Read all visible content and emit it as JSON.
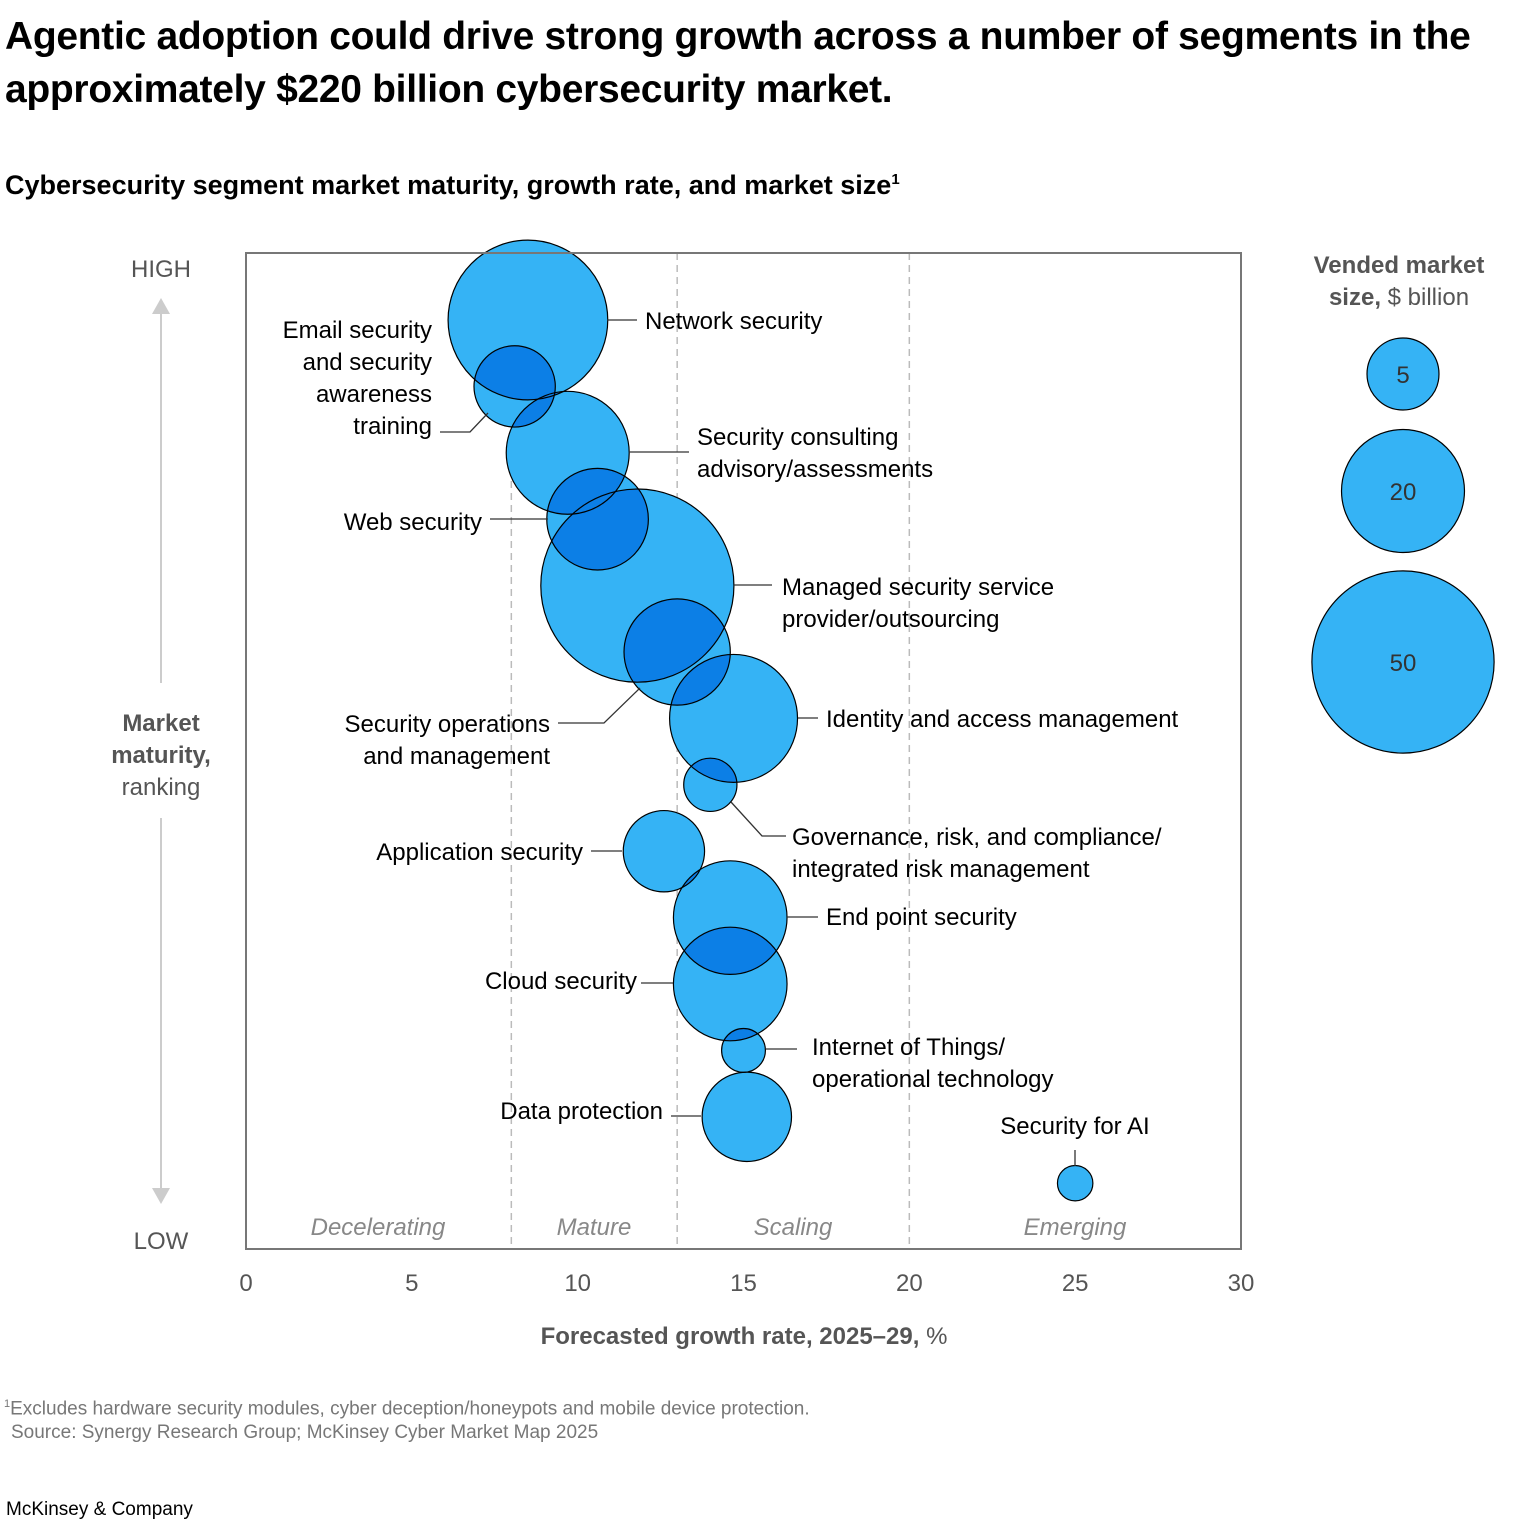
{
  "title": "Agentic adoption could drive strong growth across a number of segments in the approximately $220 billion cybersecurity market.",
  "subtitle": "Cybersecurity segment market maturity, growth rate, and market size",
  "subtitle_footnote_mark": "1",
  "footnote": {
    "mark": "1",
    "text": "Excludes hardware security modules, cyber deception/honeypots and mobile device protection.",
    "source": "Source: Synergy Research Group; McKinsey Cyber Market Map 2025"
  },
  "brand": "McKinsey & Company",
  "colors": {
    "bubble": "#35b3f5",
    "overlap": "#0c7fe6",
    "axis": "#777777",
    "text": "#000000"
  },
  "chart_data": {
    "type": "scatter",
    "subtype": "bubble",
    "xlabel_bold": "Forecasted growth rate, 2025–29,",
    "xlabel_unit": "%",
    "xlim": [
      0,
      30
    ],
    "xticks": [
      "0",
      "5",
      "10",
      "15",
      "20",
      "25",
      "30"
    ],
    "ylabel_bold": [
      "Market",
      "maturity,"
    ],
    "ylabel_unit": "ranking",
    "y_high": "HIGH",
    "y_low": "LOW",
    "grid": false,
    "phase_dividers": [
      8,
      13,
      20
    ],
    "phases": [
      "Decelerating",
      "Mature",
      "Scaling",
      "Emerging"
    ],
    "size_legend": {
      "title_bold": "Vended market",
      "title_bold2": "size,",
      "title_unit": "$ billion",
      "values": [
        5,
        20,
        50
      ],
      "labels": [
        "5",
        "20",
        "50"
      ],
      "placement": "right"
    },
    "points": [
      {
        "label": [
          "Network security"
        ],
        "growth": 8.5,
        "rank": 1,
        "size": 37
      },
      {
        "label": [
          "Email security",
          "and security",
          "awareness",
          "training"
        ],
        "growth": 8.1,
        "rank": 2,
        "size": 7
      },
      {
        "label": [
          "Security consulting",
          "advisory/assessments"
        ],
        "growth": 9.7,
        "rank": 3,
        "size": 20
      },
      {
        "label": [
          "Web security"
        ],
        "growth": 10.6,
        "rank": 4,
        "size": 12.5
      },
      {
        "label": [
          "Managed security service",
          "provider/outsourcing"
        ],
        "growth": 11.8,
        "rank": 5,
        "size": 57
      },
      {
        "label": [
          "Security operations",
          "and management"
        ],
        "growth": 13.0,
        "rank": 6,
        "size": 14
      },
      {
        "label": [
          "Identity and access management"
        ],
        "growth": 14.7,
        "rank": 7,
        "size": 22
      },
      {
        "label": [
          "Governance, risk, and compliance/",
          "integrated risk management"
        ],
        "growth": 14.0,
        "rank": 8,
        "size": 2
      },
      {
        "label": [
          "Application security"
        ],
        "growth": 12.6,
        "rank": 9,
        "size": 7
      },
      {
        "label": [
          "End point security"
        ],
        "growth": 14.6,
        "rank": 10,
        "size": 16.5
      },
      {
        "label": [
          "Cloud security"
        ],
        "growth": 14.6,
        "rank": 11,
        "size": 16.5
      },
      {
        "label": [
          "Internet of Things/",
          "operational technology"
        ],
        "growth": 15.0,
        "rank": 12,
        "size": 1
      },
      {
        "label": [
          "Data protection"
        ],
        "growth": 15.1,
        "rank": 13,
        "size": 9
      },
      {
        "label": [
          "Security for AI"
        ],
        "growth": 25.0,
        "rank": 14,
        "size": 0.4
      }
    ]
  }
}
